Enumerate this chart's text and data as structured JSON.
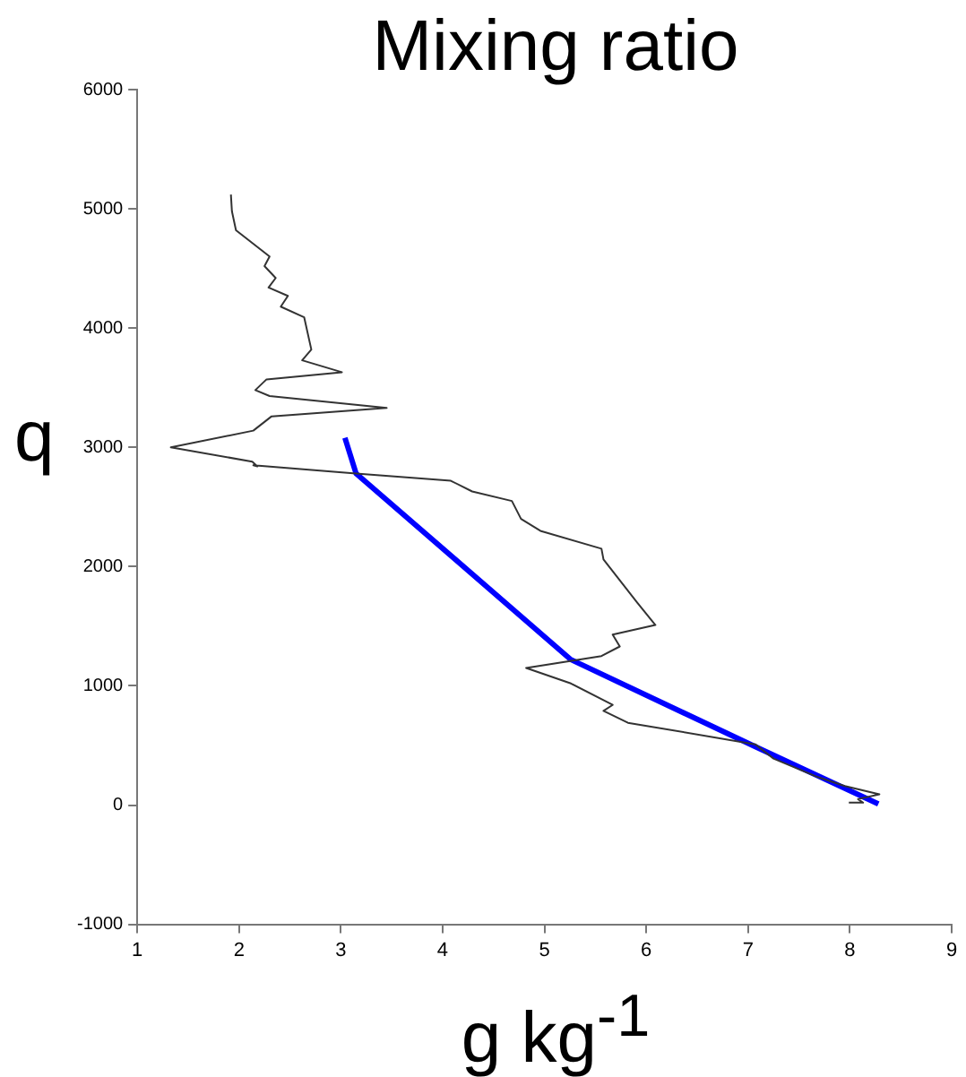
{
  "chart_data": {
    "type": "line",
    "title": "Mixing ratio",
    "xlabel": "g kg$^{-1}$",
    "ylabel": "q",
    "xlim": [
      1,
      9
    ],
    "xticks": [
      1,
      2,
      3,
      4,
      5,
      6,
      7,
      8,
      9
    ],
    "ylim": [
      -1000,
      6000
    ],
    "yticks": [
      -1000,
      0,
      1000,
      2000,
      3000,
      4000,
      5000,
      6000
    ],
    "grid": false,
    "legend": false,
    "marker": "none",
    "series": [
      {
        "color": "#333333",
        "x": [
          1.92,
          1.93,
          1.97,
          2.3,
          2.25,
          2.36,
          2.29,
          2.48,
          2.41,
          2.64,
          2.71,
          2.62,
          3.01,
          2.27,
          2.16,
          2.3,
          3.45,
          2.32,
          2.14,
          1.33,
          2.13,
          2.18,
          2.14,
          3.15,
          4.08,
          4.29,
          4.68,
          4.77,
          4.96,
          5.56,
          5.58,
          5.91,
          6.09,
          5.67,
          5.74,
          5.56,
          4.82,
          5.26,
          5.67,
          5.58,
          5.82,
          7.07,
          7.25,
          7.67,
          7.95,
          8.29,
          8.08,
          8.13,
          7.99
        ],
        "values": [
          5120,
          4980,
          4820,
          4600,
          4520,
          4420,
          4340,
          4270,
          4180,
          4090,
          3820,
          3730,
          3630,
          3570,
          3480,
          3430,
          3330,
          3260,
          3140,
          3000,
          2880,
          2840,
          2850,
          2780,
          2720,
          2630,
          2550,
          2400,
          2300,
          2150,
          2060,
          1700,
          1510,
          1430,
          1330,
          1250,
          1150,
          1020,
          840,
          790,
          690,
          510,
          390,
          240,
          160,
          90,
          50,
          20,
          20
        ]
      },
      {
        "color": "#0000ff",
        "x": [
          3.04,
          3.15,
          5.26,
          7.07,
          8.28
        ],
        "values": [
          3080,
          2780,
          1220,
          490,
          10
        ]
      }
    ]
  }
}
